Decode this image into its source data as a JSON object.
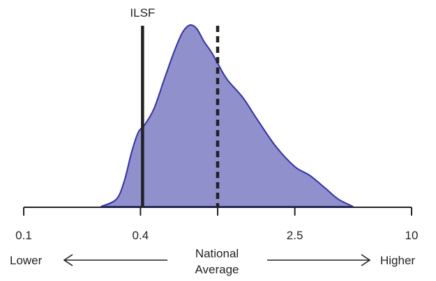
{
  "chart_data": {
    "type": "area",
    "title": "",
    "xlabel": "",
    "ylabel": "",
    "x_scale": "log",
    "xlim": [
      0.1,
      10
    ],
    "tick_labels": [
      "0.1",
      "0.4",
      "",
      "2.5",
      "10"
    ],
    "ticks": [
      0.1,
      0.4,
      1,
      2.5,
      10
    ],
    "density": {
      "x": [
        0.25,
        0.3,
        0.33,
        0.36,
        0.39,
        0.42,
        0.47,
        0.53,
        0.6,
        0.66,
        0.72,
        0.78,
        0.85,
        0.93,
        1.0,
        1.12,
        1.35,
        1.6,
        2.0,
        2.5,
        3.0,
        3.6,
        4.2,
        5.0
      ],
      "y": [
        0.0,
        0.04,
        0.14,
        0.3,
        0.41,
        0.45,
        0.54,
        0.7,
        0.86,
        0.96,
        1.0,
        0.98,
        0.91,
        0.85,
        0.79,
        0.7,
        0.6,
        0.48,
        0.33,
        0.22,
        0.17,
        0.1,
        0.04,
        0.0
      ],
      "color": "#9090cc",
      "stroke": "#3030b0"
    },
    "markers": [
      {
        "label": "ILSF",
        "x": 0.41,
        "style": "solid",
        "color": "#222222"
      },
      {
        "label": "",
        "x": 1.0,
        "style": "dashed",
        "color": "#222222"
      }
    ],
    "annotations": {
      "lower": "Lower",
      "higher": "Higher",
      "national_line1": "National",
      "national_line2": "Average"
    }
  }
}
